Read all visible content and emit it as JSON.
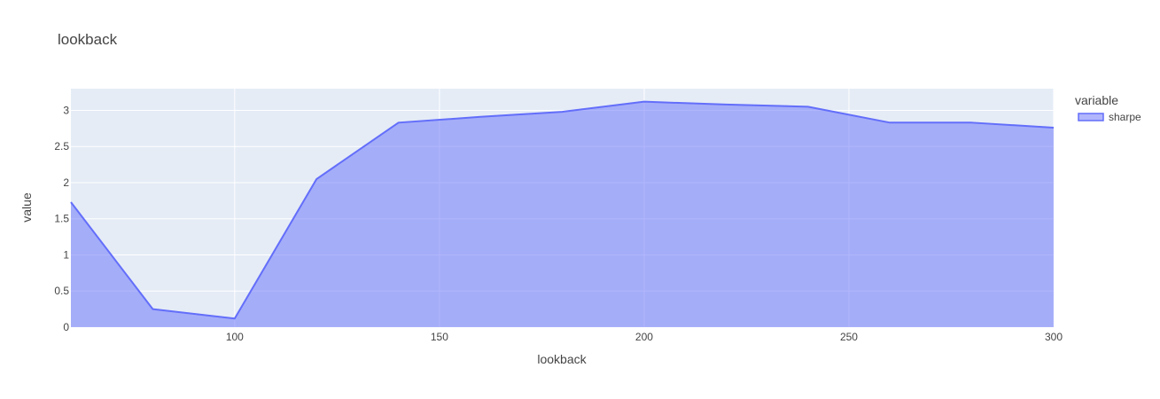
{
  "chart_data": {
    "type": "area",
    "title": "lookback",
    "xlabel": "lookback",
    "ylabel": "value",
    "x": [
      60,
      80,
      100,
      120,
      140,
      160,
      180,
      200,
      220,
      240,
      260,
      280,
      300
    ],
    "series": [
      {
        "name": "sharpe",
        "values": [
          1.73,
          0.25,
          0.12,
          2.05,
          2.83,
          2.91,
          2.98,
          3.12,
          3.08,
          3.05,
          2.83,
          2.83,
          2.76
        ]
      }
    ],
    "xlim": [
      60,
      300
    ],
    "ylim": [
      0,
      3.3
    ],
    "x_ticks": [
      100,
      150,
      200,
      250,
      300
    ],
    "y_ticks": [
      0,
      0.5,
      1,
      1.5,
      2,
      2.5,
      3
    ],
    "legend_title": "variable",
    "legend_placement": "top-right",
    "grid": true,
    "colors": {
      "plot_bg": "#E5ECF6",
      "grid": "#ffffff",
      "line": "#636EFA",
      "fill": "rgba(99,110,250,0.5)"
    }
  }
}
